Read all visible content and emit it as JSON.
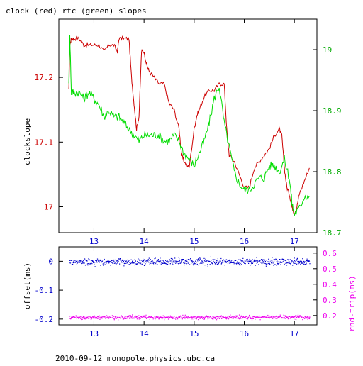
{
  "colors": {
    "clock": "#cc0000",
    "rtc": "#00dd00",
    "offset": "#0000cc",
    "rtt": "#ee00ee",
    "axis": "#000000"
  },
  "footer": "2010-09-12 monopole.physics.ubc.ca",
  "chart_data": [
    {
      "type": "line",
      "title": "clock (red) rtc (green) slopes",
      "xlim": [
        12.3,
        17.45
      ],
      "x_ticks": [
        13,
        14,
        15,
        16,
        17
      ],
      "x_tick_labels": [
        "13",
        "14",
        "15",
        "16",
        "17"
      ],
      "left_axis": {
        "label": "clockslope",
        "lim": [
          16.96,
          17.29
        ],
        "ticks": [
          17,
          17.1,
          17.2
        ],
        "tick_labels": [
          "17",
          "17.1",
          "17.2"
        ]
      },
      "right_axis": {
        "label": "",
        "lim": [
          18.7,
          19.05
        ],
        "ticks": [
          18.7,
          18.8,
          18.9,
          19
        ],
        "tick_labels": [
          "18.7",
          "18.8",
          "18.9",
          "19"
        ]
      },
      "series": [
        {
          "axis": "left",
          "x": [
            12.5,
            12.52,
            12.55,
            12.6,
            12.7,
            12.8,
            12.9,
            13.0,
            13.1,
            13.2,
            13.3,
            13.4,
            13.47,
            13.5,
            13.6,
            13.7,
            13.75,
            13.8,
            13.85,
            13.9,
            13.95,
            14.0,
            14.05,
            14.1,
            14.2,
            14.3,
            14.4,
            14.5,
            14.6,
            14.7,
            14.75,
            14.8,
            14.9,
            15.0,
            15.05,
            15.1,
            15.2,
            15.3,
            15.4,
            15.5,
            15.6,
            15.65,
            15.7,
            15.8,
            15.9,
            16.0,
            16.1,
            16.2,
            16.3,
            16.4,
            16.5,
            16.6,
            16.7,
            16.75,
            16.8,
            16.85,
            16.9,
            16.95,
            17.0,
            17.05,
            17.1,
            17.2,
            17.3
          ],
          "values": [
            17.18,
            17.25,
            17.26,
            17.26,
            17.26,
            17.25,
            17.25,
            17.25,
            17.25,
            17.24,
            17.25,
            17.25,
            17.24,
            17.26,
            17.26,
            17.26,
            17.2,
            17.16,
            17.12,
            17.14,
            17.24,
            17.24,
            17.22,
            17.21,
            17.2,
            17.19,
            17.19,
            17.16,
            17.15,
            17.12,
            17.08,
            17.07,
            17.06,
            17.12,
            17.14,
            17.15,
            17.17,
            17.18,
            17.18,
            17.19,
            17.19,
            17.12,
            17.08,
            17.07,
            17.05,
            17.03,
            17.03,
            17.06,
            17.07,
            17.08,
            17.09,
            17.11,
            17.12,
            17.11,
            17.06,
            17.03,
            17.02,
            17.0,
            16.99,
            17.0,
            17.02,
            17.04,
            17.06
          ]
        },
        {
          "axis": "right",
          "x": [
            12.5,
            12.52,
            12.55,
            12.6,
            12.7,
            12.8,
            12.9,
            13.0,
            13.1,
            13.2,
            13.3,
            13.4,
            13.5,
            13.6,
            13.7,
            13.8,
            13.9,
            14.0,
            14.1,
            14.2,
            14.3,
            14.4,
            14.5,
            14.6,
            14.7,
            14.8,
            14.9,
            15.0,
            15.1,
            15.2,
            15.3,
            15.4,
            15.5,
            15.6,
            15.7,
            15.8,
            15.9,
            16.0,
            16.1,
            16.2,
            16.3,
            16.4,
            16.5,
            16.6,
            16.7,
            16.8,
            16.9,
            16.95,
            17.0,
            17.1,
            17.2,
            17.3
          ],
          "values": [
            18.95,
            19.02,
            18.93,
            18.93,
            18.93,
            18.92,
            18.93,
            18.92,
            18.91,
            18.89,
            18.9,
            18.89,
            18.89,
            18.88,
            18.87,
            18.86,
            18.85,
            18.86,
            18.86,
            18.86,
            18.86,
            18.85,
            18.85,
            18.86,
            18.85,
            18.83,
            18.82,
            18.81,
            18.83,
            18.85,
            18.88,
            18.92,
            18.94,
            18.88,
            18.84,
            18.8,
            18.78,
            18.77,
            18.77,
            18.78,
            18.79,
            18.79,
            18.81,
            18.81,
            18.8,
            18.82,
            18.79,
            18.75,
            18.73,
            18.74,
            18.76,
            18.76
          ]
        }
      ]
    },
    {
      "type": "scatter",
      "xlim": [
        12.3,
        17.45
      ],
      "x_ticks": [
        13,
        14,
        15,
        16,
        17
      ],
      "x_tick_labels": [
        "13",
        "14",
        "15",
        "16",
        "17"
      ],
      "left_axis": {
        "label": "offset(ms)",
        "lim": [
          -0.22,
          0.05
        ],
        "ticks": [
          0,
          -0.1,
          -0.2
        ],
        "tick_labels": [
          "0",
          "-0.1",
          "-0.2"
        ]
      },
      "right_axis": {
        "label": "rnd-trip(ms)",
        "lim": [
          0.14,
          0.64
        ],
        "ticks": [
          0.2,
          0.3,
          0.4,
          0.5,
          0.6
        ],
        "tick_labels": [
          "0.2",
          "0.3",
          "0.4",
          "0.5",
          "0.6"
        ]
      },
      "series": [
        {
          "axis": "left",
          "x_range": [
            12.5,
            17.3
          ],
          "mean": 0.0,
          "spread": 0.012
        },
        {
          "axis": "right",
          "x_range": [
            12.5,
            17.3
          ],
          "mean": 0.19,
          "spread": 0.012
        }
      ]
    }
  ]
}
